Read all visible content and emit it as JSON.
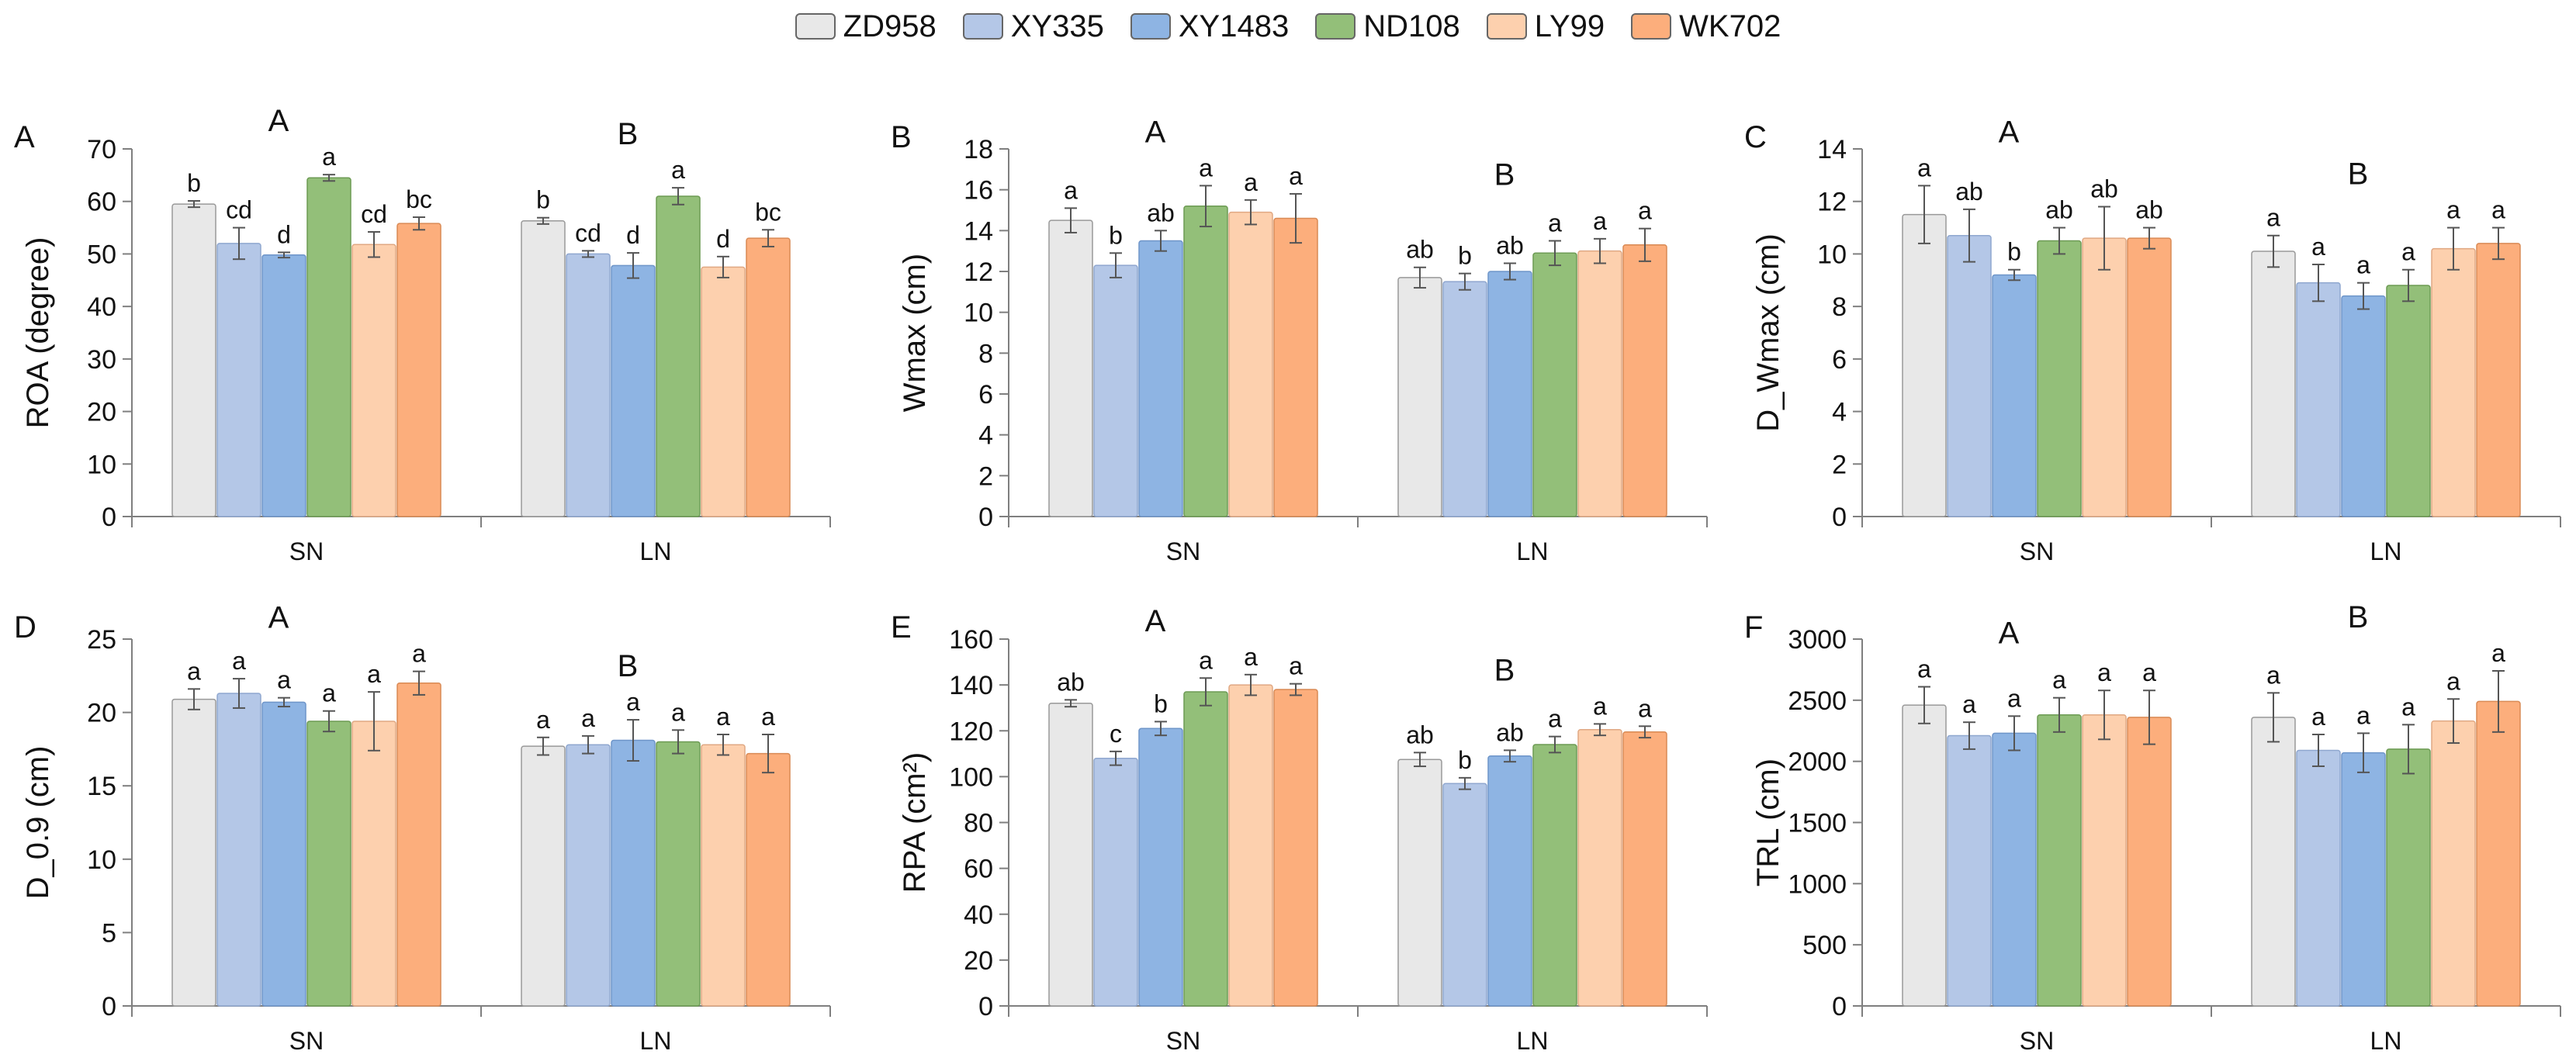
{
  "legend": {
    "series": [
      {
        "name": "ZD958",
        "color": "#e8e8e8"
      },
      {
        "name": "XY335",
        "color": "#b4c7e7"
      },
      {
        "name": "XY1483",
        "color": "#8eb4e3"
      },
      {
        "name": "ND108",
        "color": "#93bf79"
      },
      {
        "name": "LY99",
        "color": "#fdd0ae"
      },
      {
        "name": "WK702",
        "color": "#fcae7c"
      }
    ]
  },
  "chart_data": [
    {
      "type": "bar",
      "panel_label": "A",
      "ylabel": "ROA (degree)",
      "ylim": [
        0,
        70
      ],
      "yticks": [
        0,
        10,
        20,
        30,
        40,
        50,
        60,
        70
      ],
      "categories": [
        "SN",
        "LN"
      ],
      "group_letters": [
        "A",
        "B"
      ],
      "series": [
        {
          "name": "ZD958",
          "values": [
            59.5,
            56.3
          ],
          "errors": [
            0.6,
            0.6
          ],
          "letters": [
            "b",
            "b"
          ]
        },
        {
          "name": "XY335",
          "values": [
            52.0,
            50.0
          ],
          "errors": [
            3.0,
            0.6
          ],
          "letters": [
            "cd",
            "cd"
          ]
        },
        {
          "name": "XY1483",
          "values": [
            49.8,
            47.8
          ],
          "errors": [
            0.5,
            2.4
          ],
          "letters": [
            "d",
            "d"
          ]
        },
        {
          "name": "ND108",
          "values": [
            64.5,
            61.0
          ],
          "errors": [
            0.6,
            1.6
          ],
          "letters": [
            "a",
            "a"
          ]
        },
        {
          "name": "LY99",
          "values": [
            51.8,
            47.5
          ],
          "errors": [
            2.4,
            2.0
          ],
          "letters": [
            "cd",
            "d"
          ]
        },
        {
          "name": "WK702",
          "values": [
            55.8,
            53.0
          ],
          "errors": [
            1.2,
            1.6
          ],
          "letters": [
            "bc",
            "bc"
          ]
        }
      ]
    },
    {
      "type": "bar",
      "panel_label": "B",
      "ylabel": "Wmax (cm)",
      "ylim": [
        0,
        18
      ],
      "yticks": [
        0,
        2,
        4,
        6,
        8,
        10,
        12,
        14,
        16,
        18
      ],
      "categories": [
        "SN",
        "LN"
      ],
      "group_letters": [
        "A",
        "B"
      ],
      "series": [
        {
          "name": "ZD958",
          "values": [
            14.5,
            11.7
          ],
          "errors": [
            0.6,
            0.5
          ],
          "letters": [
            "a",
            "ab"
          ]
        },
        {
          "name": "XY335",
          "values": [
            12.3,
            11.5
          ],
          "errors": [
            0.6,
            0.4
          ],
          "letters": [
            "b",
            "b"
          ]
        },
        {
          "name": "XY1483",
          "values": [
            13.5,
            12.0
          ],
          "errors": [
            0.5,
            0.4
          ],
          "letters": [
            "ab",
            "ab"
          ]
        },
        {
          "name": "ND108",
          "values": [
            15.2,
            12.9
          ],
          "errors": [
            1.0,
            0.6
          ],
          "letters": [
            "a",
            "a"
          ]
        },
        {
          "name": "LY99",
          "values": [
            14.9,
            13.0
          ],
          "errors": [
            0.6,
            0.6
          ],
          "letters": [
            "a",
            "a"
          ]
        },
        {
          "name": "WK702",
          "values": [
            14.6,
            13.3
          ],
          "errors": [
            1.2,
            0.8
          ],
          "letters": [
            "a",
            "a"
          ]
        }
      ]
    },
    {
      "type": "bar",
      "panel_label": "C",
      "ylabel": "D_Wmax (cm)",
      "ylim": [
        0,
        14
      ],
      "yticks": [
        0,
        2,
        4,
        6,
        8,
        10,
        12,
        14
      ],
      "categories": [
        "SN",
        "LN"
      ],
      "group_letters": [
        "A",
        "B"
      ],
      "series": [
        {
          "name": "ZD958",
          "values": [
            11.5,
            10.1
          ],
          "errors": [
            1.1,
            0.6
          ],
          "letters": [
            "a",
            "a"
          ]
        },
        {
          "name": "XY335",
          "values": [
            10.7,
            8.9
          ],
          "errors": [
            1.0,
            0.7
          ],
          "letters": [
            "ab",
            "a"
          ]
        },
        {
          "name": "XY1483",
          "values": [
            9.2,
            8.4
          ],
          "errors": [
            0.2,
            0.5
          ],
          "letters": [
            "b",
            "a"
          ]
        },
        {
          "name": "ND108",
          "values": [
            10.5,
            8.8
          ],
          "errors": [
            0.5,
            0.6
          ],
          "letters": [
            "ab",
            "a"
          ]
        },
        {
          "name": "LY99",
          "values": [
            10.6,
            10.2
          ],
          "errors": [
            1.2,
            0.8
          ],
          "letters": [
            "ab",
            "a"
          ]
        },
        {
          "name": "WK702",
          "values": [
            10.6,
            10.4
          ],
          "errors": [
            0.4,
            0.6
          ],
          "letters": [
            "ab",
            "a"
          ]
        }
      ]
    },
    {
      "type": "bar",
      "panel_label": "D",
      "ylabel": "D_0.9 (cm)",
      "ylim": [
        0,
        25
      ],
      "yticks": [
        0,
        5,
        10,
        15,
        20,
        25
      ],
      "categories": [
        "SN",
        "LN"
      ],
      "group_letters": [
        "A",
        "B"
      ],
      "series": [
        {
          "name": "ZD958",
          "values": [
            20.9,
            17.7
          ],
          "errors": [
            0.7,
            0.6
          ],
          "letters": [
            "a",
            "a"
          ]
        },
        {
          "name": "XY335",
          "values": [
            21.3,
            17.8
          ],
          "errors": [
            1.0,
            0.6
          ],
          "letters": [
            "a",
            "a"
          ]
        },
        {
          "name": "XY1483",
          "values": [
            20.7,
            18.1
          ],
          "errors": [
            0.3,
            1.4
          ],
          "letters": [
            "a",
            "a"
          ]
        },
        {
          "name": "ND108",
          "values": [
            19.4,
            18.0
          ],
          "errors": [
            0.7,
            0.8
          ],
          "letters": [
            "a",
            "a"
          ]
        },
        {
          "name": "LY99",
          "values": [
            19.4,
            17.8
          ],
          "errors": [
            2.0,
            0.7
          ],
          "letters": [
            "a",
            "a"
          ]
        },
        {
          "name": "WK702",
          "values": [
            22.0,
            17.2
          ],
          "errors": [
            0.8,
            1.3
          ],
          "letters": [
            "a",
            "a"
          ]
        }
      ]
    },
    {
      "type": "bar",
      "panel_label": "E",
      "ylabel": "RPA (cm²)",
      "ylim": [
        0,
        160
      ],
      "yticks": [
        0,
        20,
        40,
        60,
        80,
        100,
        120,
        140,
        160
      ],
      "categories": [
        "SN",
        "LN"
      ],
      "group_letters": [
        "A",
        "B"
      ],
      "series": [
        {
          "name": "ZD958",
          "values": [
            132.0,
            107.5
          ],
          "errors": [
            1.5,
            3.0
          ],
          "letters": [
            "ab",
            "ab"
          ]
        },
        {
          "name": "XY335",
          "values": [
            108.0,
            97.0
          ],
          "errors": [
            3.0,
            2.5
          ],
          "letters": [
            "c",
            "b"
          ]
        },
        {
          "name": "XY1483",
          "values": [
            121.0,
            109.0
          ],
          "errors": [
            3.0,
            2.5
          ],
          "letters": [
            "b",
            "ab"
          ]
        },
        {
          "name": "ND108",
          "values": [
            137.0,
            114.0
          ],
          "errors": [
            6.0,
            3.5
          ],
          "letters": [
            "a",
            "a"
          ]
        },
        {
          "name": "LY99",
          "values": [
            140.0,
            120.5
          ],
          "errors": [
            4.5,
            2.5
          ],
          "letters": [
            "a",
            "a"
          ]
        },
        {
          "name": "WK702",
          "values": [
            138.0,
            119.5
          ],
          "errors": [
            2.5,
            2.5
          ],
          "letters": [
            "a",
            "a"
          ]
        }
      ]
    },
    {
      "type": "bar",
      "panel_label": "F",
      "ylabel": "TRL (cm)",
      "ylim": [
        0,
        3000
      ],
      "yticks": [
        0,
        500,
        1000,
        1500,
        2000,
        2500,
        3000
      ],
      "categories": [
        "SN",
        "LN"
      ],
      "group_letters": [
        "A",
        "B"
      ],
      "series": [
        {
          "name": "ZD958",
          "values": [
            2460,
            2360
          ],
          "errors": [
            150,
            200
          ],
          "letters": [
            "a",
            "a"
          ]
        },
        {
          "name": "XY335",
          "values": [
            2210,
            2090
          ],
          "errors": [
            110,
            130
          ],
          "letters": [
            "a",
            "a"
          ]
        },
        {
          "name": "XY1483",
          "values": [
            2230,
            2070
          ],
          "errors": [
            140,
            160
          ],
          "letters": [
            "a",
            "a"
          ]
        },
        {
          "name": "ND108",
          "values": [
            2380,
            2100
          ],
          "errors": [
            140,
            200
          ],
          "letters": [
            "a",
            "a"
          ]
        },
        {
          "name": "LY99",
          "values": [
            2380,
            2330
          ],
          "errors": [
            200,
            180
          ],
          "letters": [
            "a",
            "a"
          ]
        },
        {
          "name": "WK702",
          "values": [
            2360,
            2490
          ],
          "errors": [
            220,
            250
          ],
          "letters": [
            "a",
            "a"
          ]
        }
      ]
    }
  ]
}
